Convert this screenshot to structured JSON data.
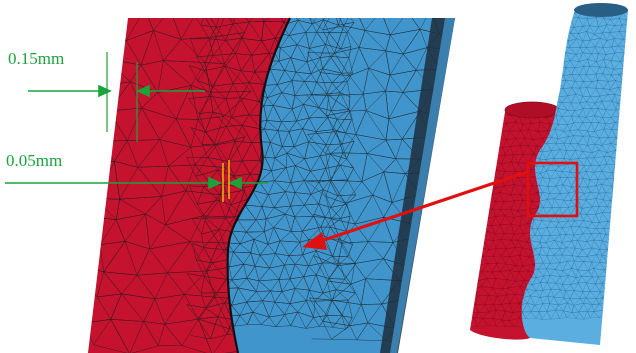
{
  "annotations": {
    "dim_large": "0.15mm",
    "dim_small": "0.05mm"
  },
  "colors": {
    "left_part": "#c4122f",
    "right_part": "#3f95cc",
    "right_part_light": "#5aaee0",
    "mesh_line": "#1b1b1b",
    "dimension": "#1aa33b",
    "callout": "#e01010",
    "gap_marker": "#f2c200"
  }
}
